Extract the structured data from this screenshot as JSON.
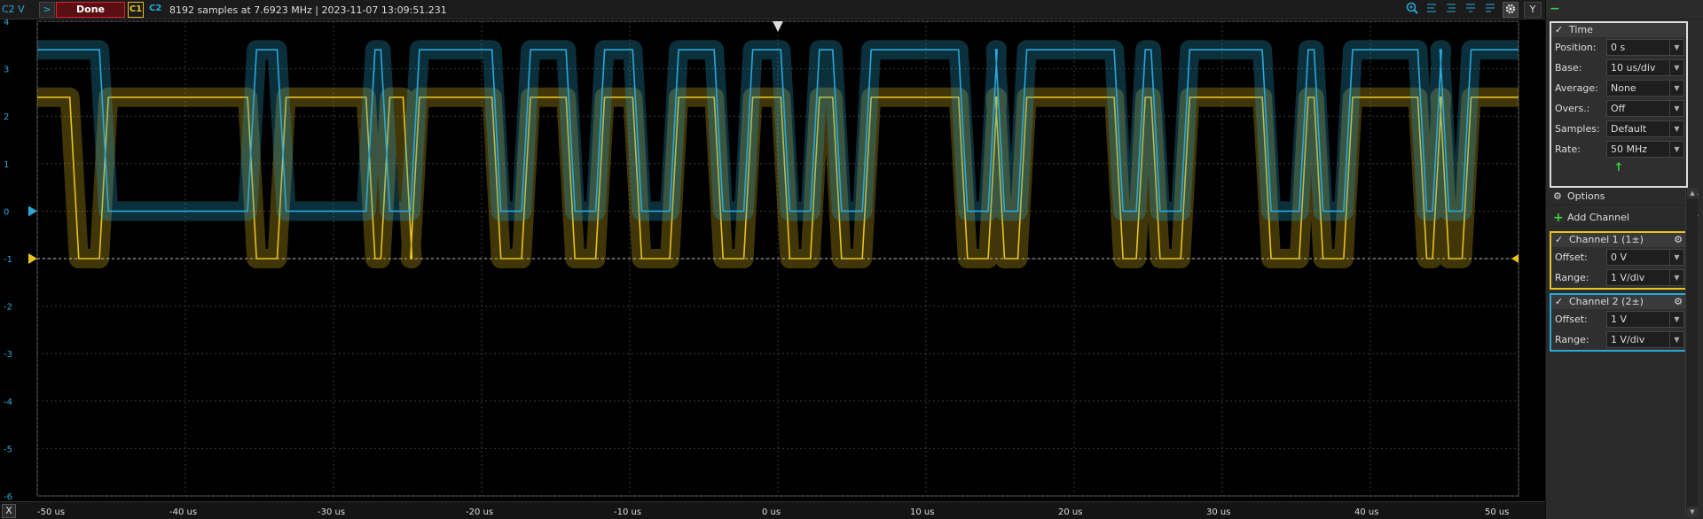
{
  "header": {
    "axis_channel_label": "C2 V",
    "run_button": ">",
    "status_button": "Done",
    "c1_label": "C1",
    "c2_label": "C2",
    "status_text": "8192 samples at 7.6923 MHz | 2023-11-07 13:09:51.231",
    "y_button": "Y",
    "icons": [
      "zoom-icon",
      "zoom-range-icon",
      "zoom-range-icon",
      "zoom-range-icon",
      "zoom-range-icon",
      "gear-icon"
    ]
  },
  "x_button": "X",
  "panel": {
    "time": {
      "title": "Time",
      "check": "✓",
      "rows": [
        {
          "label": "Position:",
          "value": "0 s"
        },
        {
          "label": "Base:",
          "value": "10 us/div"
        },
        {
          "label": "Average:",
          "value": "None"
        },
        {
          "label": "Overs.:",
          "value": "Off"
        },
        {
          "label": "Samples:",
          "value": "Default"
        },
        {
          "label": "Rate:",
          "value": "50 MHz"
        }
      ],
      "arrow": "↑"
    },
    "options_label": "Options",
    "add_channel_label": "Add Channel",
    "channel1": {
      "title": "Channel 1 (1±)",
      "check": "✓",
      "color": "#e8c21e",
      "rows": [
        {
          "label": "Offset:",
          "value": "0 V"
        },
        {
          "label": "Range:",
          "value": "1 V/div"
        }
      ]
    },
    "channel2": {
      "title": "Channel 2 (2±)",
      "check": "✓",
      "color": "#2aa8d9",
      "rows": [
        {
          "label": "Offset:",
          "value": "1 V"
        },
        {
          "label": "Range:",
          "value": "1 V/div"
        }
      ]
    }
  },
  "chart_data": {
    "type": "line",
    "title": "",
    "xlabel": "",
    "ylabel": "C2 V",
    "xlim": [
      -50,
      50
    ],
    "ylim": [
      -6,
      4
    ],
    "x_unit": "us",
    "x_ticks": [
      "-50 us",
      "-40 us",
      "-30 us",
      "-20 us",
      "-10 us",
      "0 us",
      "10 us",
      "20 us",
      "30 us",
      "40 us",
      "50 us"
    ],
    "y_ticks": [
      "4",
      "3",
      "2",
      "1",
      "0",
      "-1",
      "-2",
      "-3",
      "-4",
      "-5",
      "-6"
    ],
    "grid": true,
    "series": [
      {
        "name": "C1",
        "color": "#e8c21e",
        "offset_div": -1,
        "low": -1.0,
        "high": 2.4,
        "transitions": [
          -47.5,
          -45.5,
          -35.5,
          -33.5,
          -27.5,
          -26.5,
          -25.0,
          -24.5,
          -19.0,
          -17.0,
          -14.0,
          -12.0,
          -9.5,
          -7.0,
          -4.0,
          -2.0,
          0.5,
          2.5,
          4.0,
          6.0,
          12.5,
          14.5,
          15.0,
          16.5,
          23.0,
          24.5,
          25.5,
          27.5,
          33.0,
          35.5,
          36.5,
          38.5,
          43.5,
          44.5,
          45.0,
          46.5
        ],
        "start_high": true
      },
      {
        "name": "C2",
        "color": "#2aa8d9",
        "offset_div": 0,
        "low": 0.0,
        "high": 3.4,
        "transitions": [
          -45.5,
          -35.5,
          -33.5,
          -27.5,
          -26.5,
          -24.5,
          -19.0,
          -17.0,
          -14.0,
          -12.0,
          -9.5,
          -7.0,
          -4.0,
          -2.0,
          0.5,
          2.5,
          4.0,
          6.0,
          12.5,
          14.5,
          15.0,
          16.5,
          23.0,
          24.5,
          25.5,
          27.5,
          33.0,
          35.5,
          36.5,
          38.5,
          43.5,
          44.5,
          45.0,
          46.5
        ],
        "start_high": true
      }
    ]
  }
}
